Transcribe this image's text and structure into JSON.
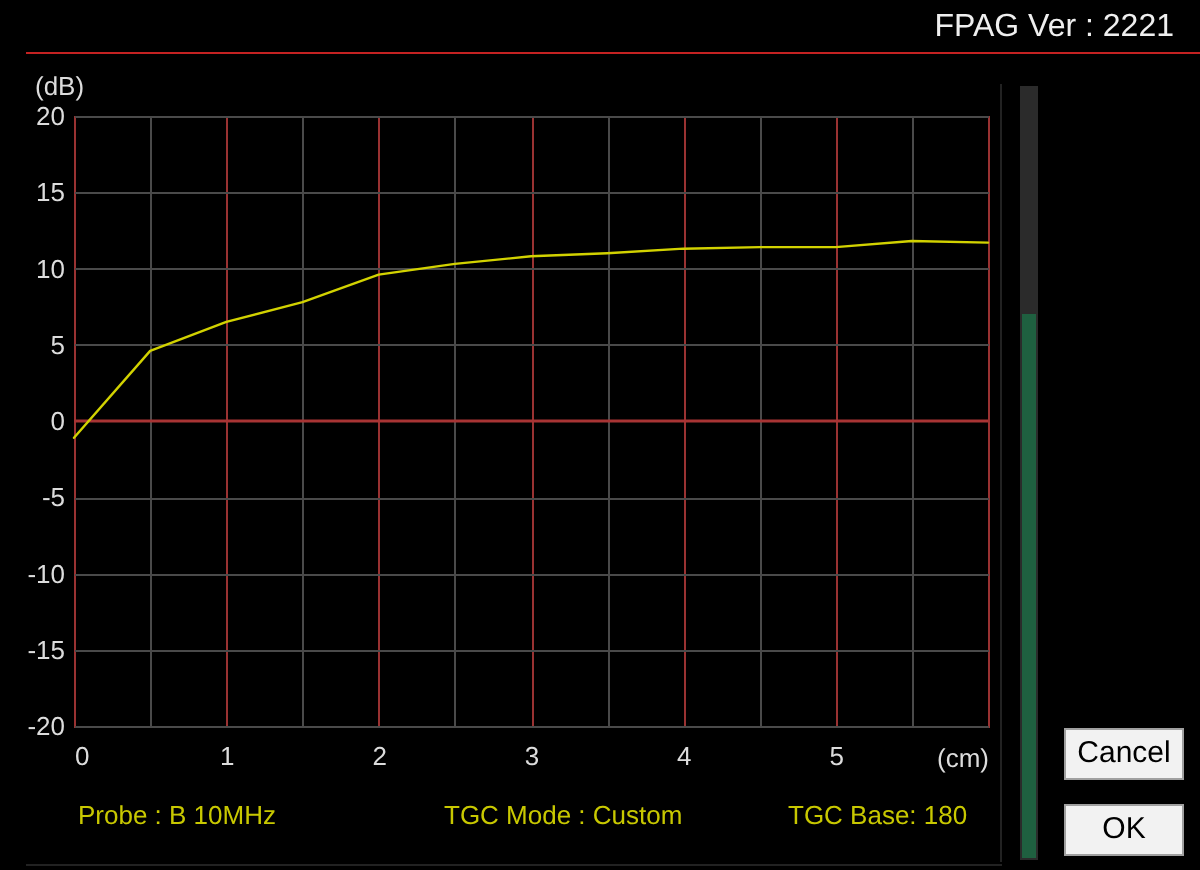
{
  "chart_data": {
    "type": "line",
    "title": "FPAG Ver : 2221",
    "xlabel": "(cm)",
    "ylabel": "(dB)",
    "x": [
      0,
      0.5,
      1,
      1.5,
      2,
      2.5,
      3,
      3.5,
      4,
      4.5,
      5,
      5.5,
      6
    ],
    "values": [
      -1.1,
      4.6,
      6.5,
      7.8,
      9.6,
      10.3,
      10.8,
      11.0,
      11.3,
      11.4,
      11.4,
      11.8,
      11.7
    ],
    "color": "#d2d200",
    "xlim": [
      0,
      6
    ],
    "ylim": [
      -20,
      20
    ],
    "xticks": [
      0,
      {
        "value": 0.5,
        "label": null
      },
      1,
      {
        "value": 1.5,
        "label": null
      },
      2,
      {
        "value": 2.5,
        "label": null
      },
      3,
      {
        "value": 3.5,
        "label": null
      },
      4,
      {
        "value": 4.5,
        "label": null
      },
      5,
      {
        "value": 5.5,
        "label": null
      }
    ],
    "yticks": [
      -20,
      -15,
      -10,
      -5,
      0,
      5,
      10,
      15,
      20
    ],
    "grid": true,
    "ref_lines": [
      {
        "axis": "y",
        "value": 0,
        "color": "#a83434"
      }
    ],
    "annotations": [
      "Probe : B 10MHz",
      "TGC Mode : Custom",
      "TGC Base: 180",
      "Cancel",
      "OK"
    ]
  }
}
